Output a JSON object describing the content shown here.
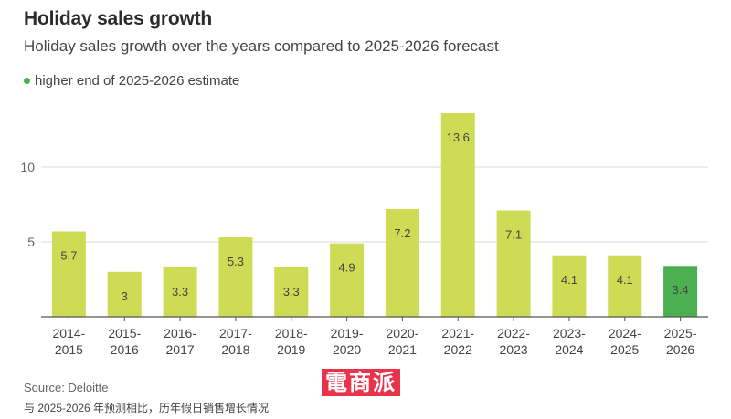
{
  "title": "Holiday sales growth",
  "subtitle": "Holiday sales growth over the years compared to 2025-2026 forecast",
  "legend": {
    "label": "higher end of 2025-2026 estimate",
    "color": "#4caf50"
  },
  "colors": {
    "bar": "#cedc55",
    "highlight": "#4caf50",
    "grid": "#d9d9d9",
    "axis": "#555555"
  },
  "chart_data": {
    "type": "bar",
    "title": "Holiday sales growth",
    "categories": [
      [
        "2014-",
        "2015"
      ],
      [
        "2015-",
        "2016"
      ],
      [
        "2016-",
        "2017"
      ],
      [
        "2017-",
        "2018"
      ],
      [
        "2018-",
        "2019"
      ],
      [
        "2019-",
        "2020"
      ],
      [
        "2020-",
        "2021"
      ],
      [
        "2021-",
        "2022"
      ],
      [
        "2022-",
        "2023"
      ],
      [
        "2023-",
        "2024"
      ],
      [
        "2024-",
        "2025"
      ],
      [
        "2025-",
        "2026"
      ]
    ],
    "values": [
      5.7,
      3,
      3.3,
      5.3,
      3.3,
      4.9,
      7.2,
      13.6,
      7.1,
      4.1,
      4.1,
      3.4
    ],
    "labels": [
      "5.7",
      "3",
      "3.3",
      "5.3",
      "3.3",
      "4.9",
      "7.2",
      "13.6",
      "7.1",
      "4.1",
      "4.1",
      "3.4"
    ],
    "highlight_index": 11,
    "yticks": [
      5,
      10
    ],
    "ylim": [
      0,
      14
    ],
    "xlabel": "",
    "ylabel": "",
    "grid": true
  },
  "source": "Source: Deloitte",
  "note": "与 2025-2026 年预测相比，历年假日销售增长情况",
  "watermark": "電商派"
}
